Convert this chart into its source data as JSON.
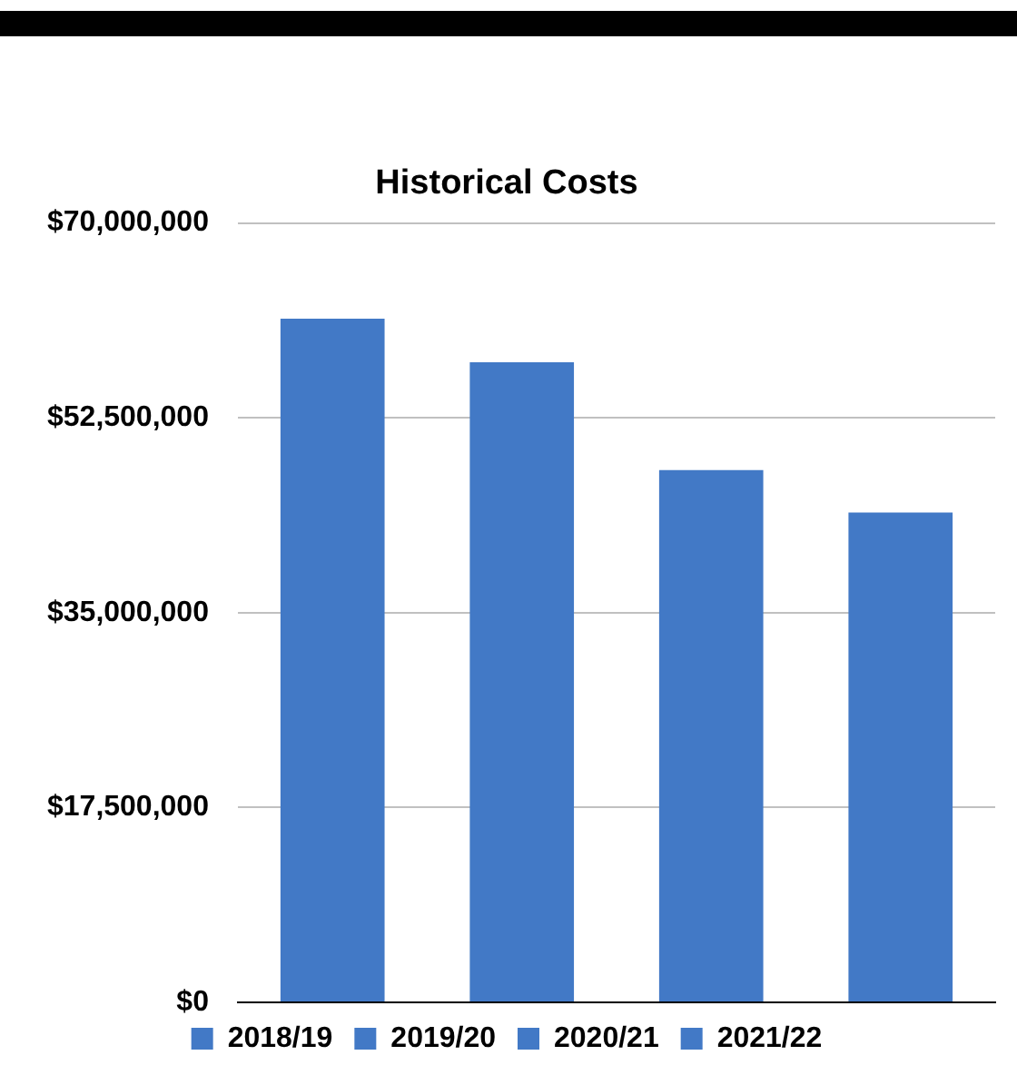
{
  "chart_data": {
    "type": "bar",
    "title": "Historical Costs",
    "categories": [
      null,
      null,
      null,
      null
    ],
    "series": [
      {
        "name": "2018/19",
        "color": "#4279c6",
        "values": [
          61400000,
          null,
          null,
          null
        ]
      },
      {
        "name": "2019/20",
        "color": "#4279c6",
        "values": [
          null,
          57500000,
          null,
          null
        ]
      },
      {
        "name": "2020/21",
        "color": "#4279c6",
        "values": [
          null,
          null,
          47800000,
          null
        ]
      },
      {
        "name": "2021/22",
        "color": "#4279c6",
        "values": [
          null,
          null,
          null,
          44000000
        ]
      }
    ],
    "ylim": [
      0,
      70000000
    ],
    "yticks": [
      {
        "value": 0,
        "label": "$0"
      },
      {
        "value": 17500000,
        "label": "$17,500,000"
      },
      {
        "value": 35000000,
        "label": "$35,000,000"
      },
      {
        "value": 52500000,
        "label": "$52,500,000"
      },
      {
        "value": 70000000,
        "label": "$70,000,000"
      }
    ],
    "grid": "y",
    "legend": "bottom",
    "tick_labels": "y"
  }
}
